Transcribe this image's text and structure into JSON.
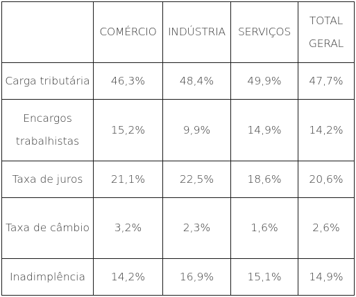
{
  "table": {
    "headers": [
      "",
      "COMÉRCIO",
      "INDÚSTRIA",
      "SERVIÇOS",
      "TOTAL GERAL"
    ],
    "rows": [
      {
        "label": "Carga tributária",
        "values": [
          "46,3%",
          "48,4%",
          "49,9%",
          "47,7%"
        ]
      },
      {
        "label": "Encargos trabalhistas",
        "values": [
          "15,2%",
          "9,9%",
          "14,9%",
          "14,2%"
        ]
      },
      {
        "label": "Taxa de juros",
        "values": [
          "21,1%",
          "22,5%",
          "18,6%",
          "20,6%"
        ]
      },
      {
        "label": "Taxa de câmbio",
        "values": [
          "3,2%",
          "2,3%",
          "1,6%",
          "2,6%"
        ]
      },
      {
        "label": "Inadimplência",
        "values": [
          "14,2%",
          "16,9%",
          "15,1%",
          "14,9%"
        ]
      }
    ]
  }
}
